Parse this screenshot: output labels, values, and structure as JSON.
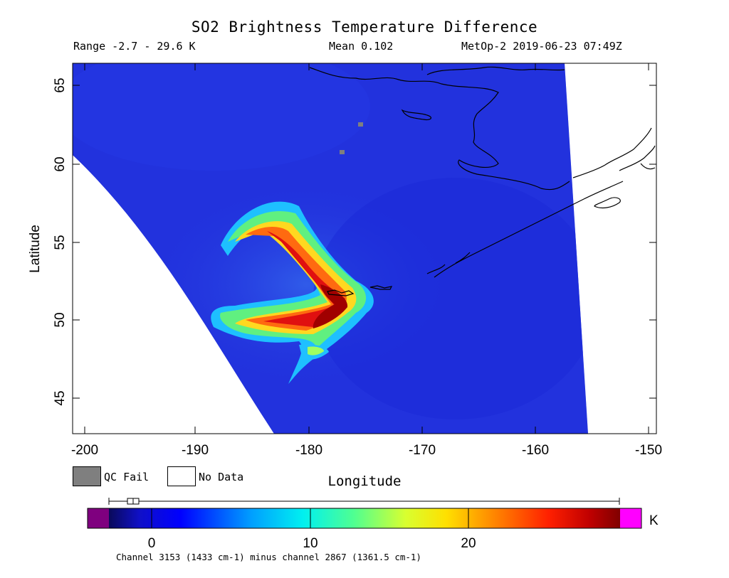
{
  "header": {
    "title": "SO2 Brightness Temperature Difference",
    "range": "Range -2.7 - 29.6 K",
    "mean": "Mean 0.102",
    "satellite_time": "MetOp-2 2019-06-23 07:49Z"
  },
  "axes": {
    "ylabel": "Latitude",
    "xlabel": "Longitude",
    "y_ticks": [
      "65",
      "60",
      "55",
      "50",
      "45"
    ],
    "x_ticks": [
      "-200",
      "-190",
      "-180",
      "-170",
      "-160",
      "-150"
    ],
    "lon_range": [
      -201,
      -150.5
    ],
    "lat_range": [
      42.5,
      66.5
    ]
  },
  "legend": {
    "qc_fail": "QC Fail",
    "no_data": "No Data",
    "qc_fail_color": "#7f7f7f",
    "no_data_color": "#ffffff"
  },
  "colorbar": {
    "unit": "K",
    "ticks": [
      "0",
      "10",
      "20"
    ],
    "under_color": "#7f007f",
    "over_color": "#ff00ff",
    "range": [
      -2.7,
      29.6
    ],
    "footer": "Channel 3153 (1433 cm-1) minus channel 2867 (1361.5 cm-1)"
  },
  "colors": {
    "background_field": "#1e2fe0",
    "plume_edge": "#22c7ff",
    "plume_mid": "#f0e020",
    "plume_core": "#c80000",
    "coastline": "#000000"
  }
}
